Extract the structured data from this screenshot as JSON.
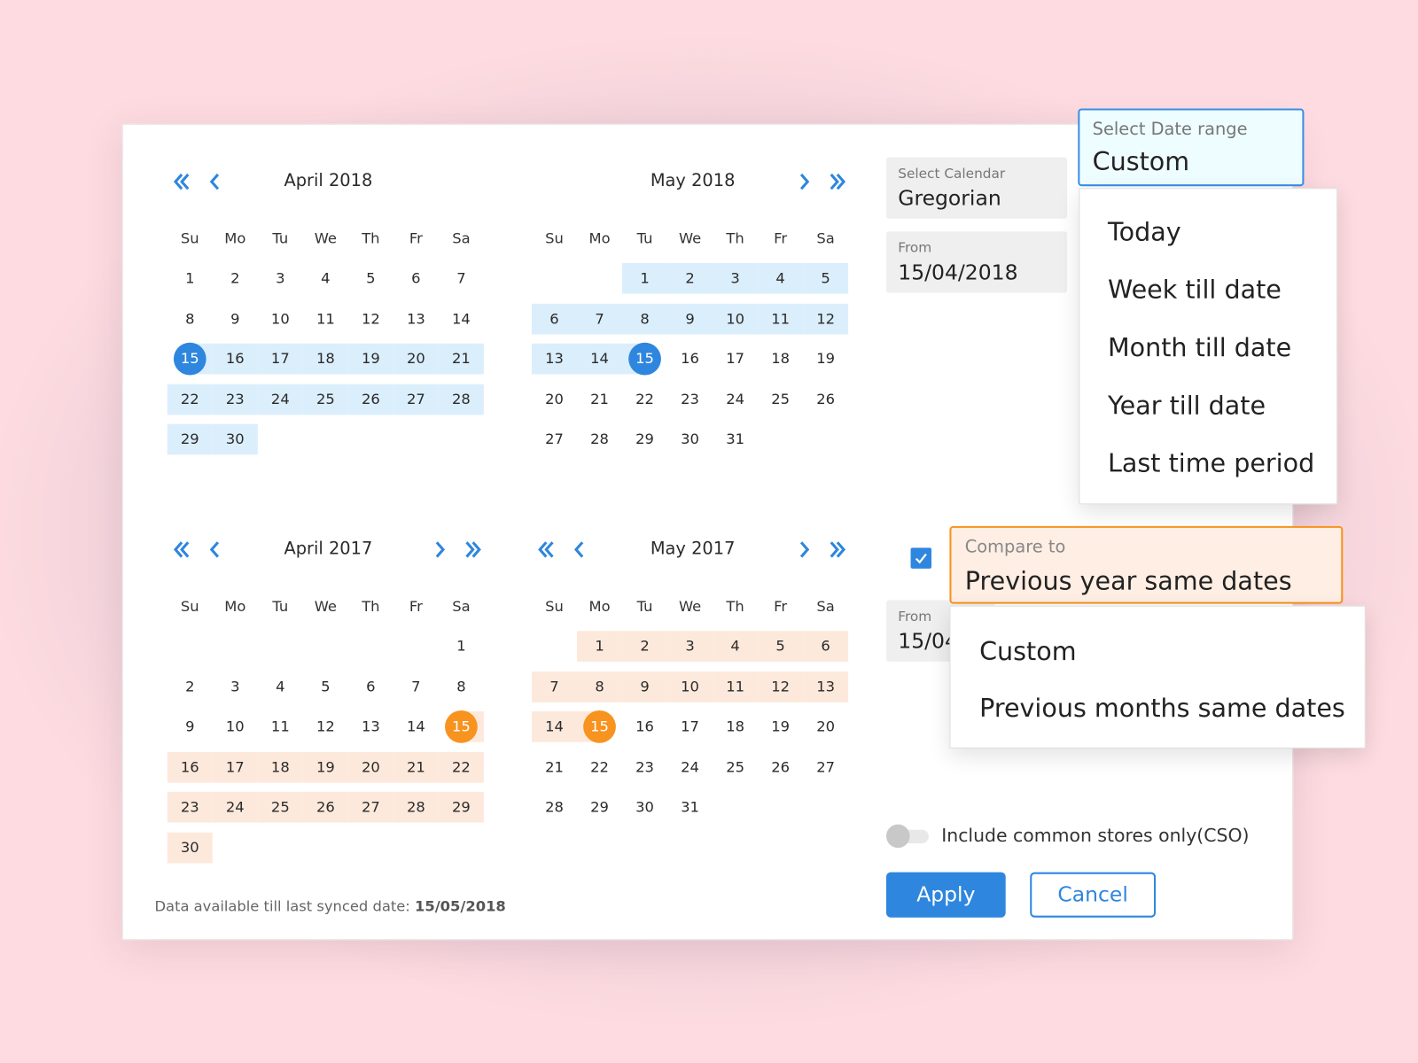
{
  "weekdays": [
    "Su",
    "Mo",
    "Tu",
    "We",
    "Th",
    "Fr",
    "Sa"
  ],
  "colors": {
    "primary": "#2e86de",
    "primary_light": "#dbeefc",
    "compare": "#f7931e",
    "compare_light": "#fde9dc"
  },
  "calendars": [
    {
      "title": "April 2018",
      "first_weekday": 0,
      "days": 30,
      "range": [
        15,
        30
      ],
      "selected": 15,
      "theme": "primary",
      "nav": [
        "double-left",
        "left"
      ]
    },
    {
      "title": "May 2018",
      "first_weekday": 2,
      "days": 31,
      "range": [
        1,
        15
      ],
      "selected": 15,
      "theme": "primary",
      "nav": [
        "right",
        "double-right"
      ]
    },
    {
      "title": "April 2017",
      "first_weekday": 6,
      "days": 30,
      "range": [
        15,
        30
      ],
      "selected": 15,
      "theme": "compare",
      "nav": [
        "double-left",
        "left",
        "right",
        "double-right"
      ]
    },
    {
      "title": "May 2017",
      "first_weekday": 1,
      "days": 31,
      "range": [
        1,
        15
      ],
      "selected": 15,
      "theme": "compare",
      "nav": [
        "double-left",
        "left",
        "right",
        "double-right"
      ]
    }
  ],
  "footer": {
    "label": "Data available till last synced date: ",
    "date": "15/05/2018"
  },
  "calendar_select": {
    "label": "Select Calendar",
    "value": "Gregorian"
  },
  "from_primary": {
    "label": "From",
    "value": "15/04/2018"
  },
  "date_range": {
    "label": "Select Date range",
    "value": "Custom",
    "options": [
      "Today",
      "Week till date",
      "Month till date",
      "Year till date",
      "Last time period"
    ]
  },
  "compare": {
    "checked": true,
    "label": "Compare to",
    "value": "Previous year same dates",
    "options": [
      "Custom",
      "Previous months same dates"
    ]
  },
  "from_compare": {
    "label": "From",
    "value": "15/04"
  },
  "cso": {
    "label": "Include common stores only(CSO)",
    "enabled": false
  },
  "buttons": {
    "apply": "Apply",
    "cancel": "Cancel"
  }
}
